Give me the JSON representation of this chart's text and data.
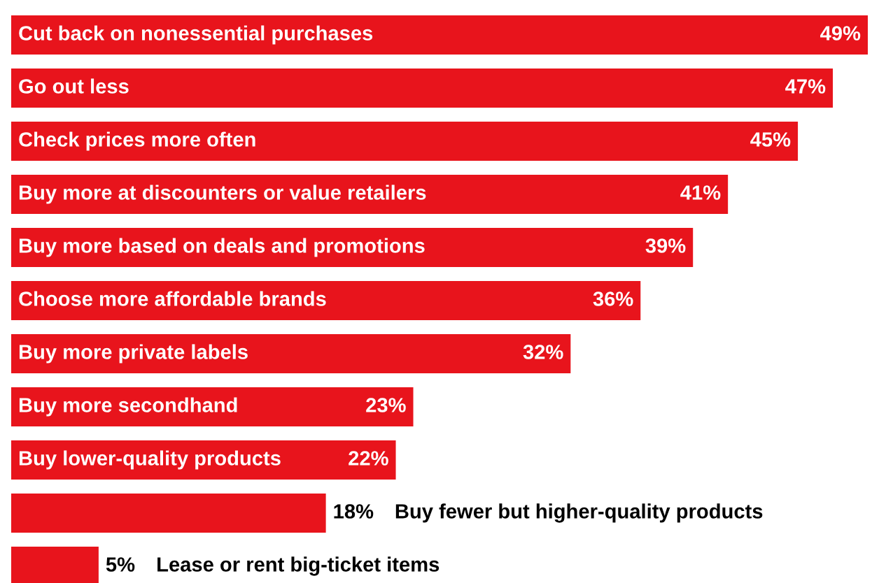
{
  "chart_data": {
    "type": "bar",
    "orientation": "horizontal",
    "categories": [
      "Cut back on nonessential purchases",
      "Go out less",
      "Check prices more often",
      "Buy more at discounters or value retailers",
      "Buy more based on deals and promotions",
      "Choose more affordable brands",
      "Buy more private labels",
      "Buy more secondhand",
      "Buy lower-quality products",
      "Buy fewer but higher-quality products",
      "Lease or rent big-ticket items"
    ],
    "values": [
      49,
      47,
      45,
      41,
      39,
      36,
      32,
      23,
      22,
      18,
      5
    ],
    "value_labels": [
      "49%",
      "47%",
      "45%",
      "41%",
      "39%",
      "36%",
      "32%",
      "23%",
      "22%",
      "18%",
      "5%"
    ],
    "color": "#e8141c"
  }
}
